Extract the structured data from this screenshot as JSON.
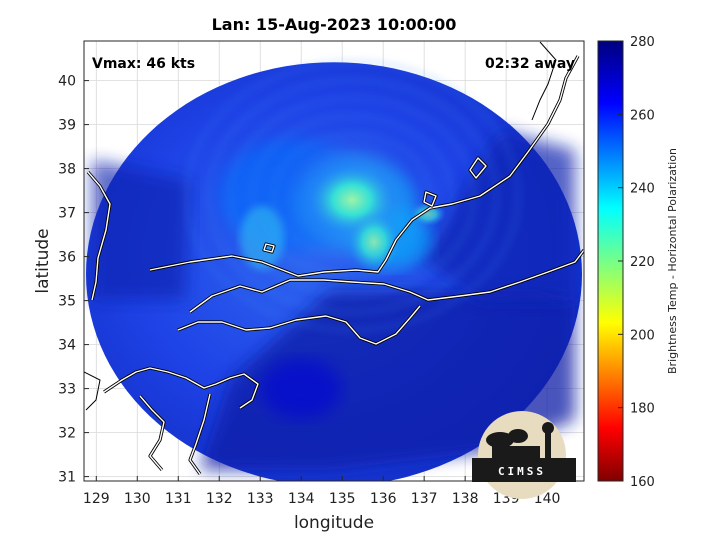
{
  "chart_data": {
    "type": "heatmap",
    "title": "Lan: 15-Aug-2023 10:00:00",
    "xlabel": "longitude",
    "ylabel": "latitude",
    "xlim": [
      128.7,
      140.9
    ],
    "ylim": [
      30.9,
      40.9
    ],
    "xticks": [
      129,
      130,
      131,
      132,
      133,
      134,
      135,
      136,
      137,
      138,
      139,
      140
    ],
    "yticks": [
      31,
      32,
      33,
      34,
      35,
      36,
      37,
      38,
      39,
      40
    ],
    "grid": true,
    "annotations": {
      "top_left": "Vmax: 46 kts",
      "top_right": "02:32 away"
    },
    "colorbar": {
      "label": "Brightness Temp - Horizontal Polarization",
      "range": [
        160,
        280
      ],
      "ticks": [
        160,
        180,
        200,
        220,
        240,
        260,
        280
      ],
      "colormap": "jet"
    },
    "swath": {
      "center_lon": 134.8,
      "center_lat": 35.6
    },
    "features": [
      {
        "name": "cold convection core",
        "lon": 135.3,
        "lat": 37.2,
        "value": 238
      },
      {
        "name": "convective band",
        "lon": 136.2,
        "lat": 36.4,
        "value": 240
      },
      {
        "name": "outer cloud",
        "lon": 133.8,
        "lat": 37.4,
        "value": 250
      },
      {
        "name": "background ocean",
        "lon": 134.0,
        "lat": 33.0,
        "value": 268
      }
    ],
    "logo": "CIMSS"
  },
  "colors": {
    "swath_base": "#1f3fe8",
    "ocean_dark": "#0c1c9a",
    "coast": "#ffffff",
    "map_line": "#000000"
  }
}
